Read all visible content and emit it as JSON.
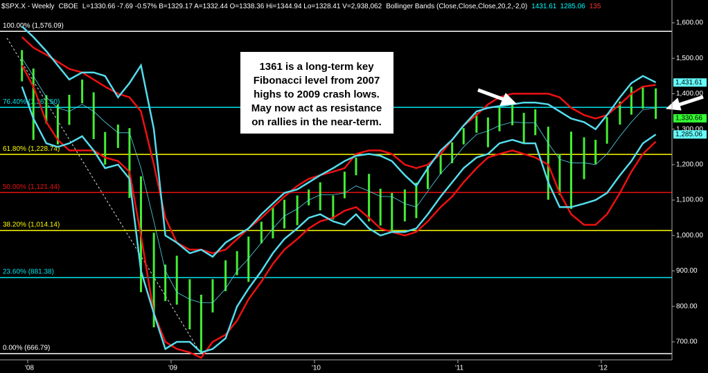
{
  "chart_data": {
    "type": "ohlc",
    "header": [
      {
        "text": "$SPX.X - Weekly",
        "color": "#ffffff"
      },
      {
        "text": "CBOE",
        "color": "#ffffff"
      },
      {
        "text": "L=1330.66 -7.69 -0.57% B=1329.17 A=1332.44 O=1338.36 Hi=1344.94 Lo=1328.41 V=2,938,062",
        "color": "#ffffff"
      },
      {
        "text": "Bollinger Bands (Close,Close,Close,20,2,-2,0)",
        "color": "#ffffff"
      },
      {
        "text": "1431.61",
        "color": "#00ffff"
      },
      {
        "text": "1285.06",
        "color": "#00ffff"
      },
      {
        "text": "135",
        "color": "#ff3333"
      }
    ],
    "annotation": [
      "1361 is a long-term key",
      "Fibonacci level from 2007",
      "highs to 2009 crash lows.",
      "May now act as resistance",
      "on rallies in the near-term."
    ],
    "xlim": [
      2007.807,
      2012.493
    ],
    "xticks": [
      {
        "value": 2008,
        "label": "'08"
      },
      {
        "value": 2009,
        "label": "'09"
      },
      {
        "value": 2010,
        "label": "'10"
      },
      {
        "value": 2011,
        "label": "'11"
      },
      {
        "value": 2012,
        "label": "'12"
      }
    ],
    "ylim": [
      649.2,
      1664.4
    ],
    "yticks": [
      {
        "value": 700,
        "label": "700.00"
      },
      {
        "value": 800,
        "label": "800.00"
      },
      {
        "value": 900,
        "label": "900.00"
      },
      {
        "value": 1000,
        "label": "1,000.00"
      },
      {
        "value": 1100,
        "label": "1,100.00"
      },
      {
        "value": 1200,
        "label": "1,200.00"
      },
      {
        "value": 1300,
        "label": "1,300.00"
      },
      {
        "value": 1400,
        "label": "1,400.00"
      },
      {
        "value": 1500,
        "label": "1,500.00"
      },
      {
        "value": 1600,
        "label": "1,600.00"
      }
    ],
    "fib_levels": [
      {
        "label": "100.00% (1,576.09)",
        "value": 1576.09,
        "color": "#ffffff"
      },
      {
        "label": "76.40% (1,361.50)",
        "value": 1361.5,
        "color": "#00e5ee"
      },
      {
        "label": "61.80% (1,228.74)",
        "value": 1228.74,
        "color": "#ffff00"
      },
      {
        "label": "50.00% (1,121.44)",
        "value": 1121.44,
        "color": "#ee1111"
      },
      {
        "label": "38.20% (1,014.14)",
        "value": 1014.14,
        "color": "#ffff00"
      },
      {
        "label": "23.60% (881.38)",
        "value": 881.38,
        "color": "#00e5ee"
      },
      {
        "label": "0.00% (666.79)",
        "value": 666.79,
        "color": "#ffffff"
      }
    ],
    "price_tags": [
      {
        "value": 1431.61,
        "label": "1,431.61",
        "color": "#66ffff"
      },
      {
        "value": 1330.66,
        "label": "1,330.66",
        "color": "#33ff33"
      },
      {
        "value": 1285.06,
        "label": "1,285.06",
        "color": "#66ffff"
      }
    ],
    "bar_color": "#44ee33",
    "x": [
      2007.96,
      2008.04,
      2008.13,
      2008.21,
      2008.29,
      2008.38,
      2008.46,
      2008.54,
      2008.63,
      2008.71,
      2008.79,
      2008.88,
      2008.96,
      2009.04,
      2009.13,
      2009.21,
      2009.29,
      2009.38,
      2009.46,
      2009.54,
      2009.63,
      2009.71,
      2009.79,
      2009.88,
      2009.96,
      2010.04,
      2010.13,
      2010.21,
      2010.29,
      2010.38,
      2010.46,
      2010.54,
      2010.63,
      2010.71,
      2010.79,
      2010.88,
      2010.96,
      2011.04,
      2011.13,
      2011.21,
      2011.29,
      2011.38,
      2011.46,
      2011.54,
      2011.63,
      2011.71,
      2011.79,
      2011.88,
      2011.96,
      2012.04,
      2012.13,
      2012.21,
      2012.29,
      2012.38
    ],
    "high": [
      1523,
      1471,
      1396,
      1370,
      1397,
      1440,
      1404,
      1292,
      1313,
      1303,
      1167,
      1008,
      918,
      943,
      877,
      833,
      877,
      930,
      956,
      997,
      1039,
      1080,
      1101,
      1113,
      1130,
      1150,
      1113,
      1180,
      1220,
      1174,
      1132,
      1120,
      1130,
      1149,
      1196,
      1227,
      1263,
      1303,
      1344,
      1333,
      1364,
      1371,
      1346,
      1356,
      1307,
      1230,
      1293,
      1277,
      1270,
      1334,
      1378,
      1420,
      1422,
      1415
    ],
    "low": [
      1435,
      1270,
      1316,
      1257,
      1312,
      1373,
      1272,
      1200,
      1247,
      1106,
      840,
      741,
      815,
      805,
      735,
      667,
      783,
      843,
      888,
      869,
      978,
      992,
      1020,
      1029,
      1085,
      1071,
      1045,
      1105,
      1170,
      1040,
      1028,
      1011,
      1040,
      1049,
      1131,
      1173,
      1204,
      1257,
      1290,
      1249,
      1294,
      1311,
      1258,
      1283,
      1101,
      1114,
      1075,
      1159,
      1202,
      1259,
      1313,
      1341,
      1358,
      1329
    ],
    "lines": [
      {
        "color": "#ee1111",
        "width": 2.5,
        "values": [
          1560,
          1530,
          1510,
          1490,
          1470,
          1460,
          1440,
          1420,
          1400,
          1390,
          1350,
          1200,
          1050,
          980,
          960,
          960,
          950,
          960,
          990,
          1020,
          1050,
          1080,
          1110,
          1140,
          1160,
          1170,
          1180,
          1190,
          1230,
          1240,
          1240,
          1230,
          1200,
          1190,
          1200,
          1230,
          1270,
          1310,
          1340,
          1370,
          1390,
          1400,
          1400,
          1400,
          1400,
          1390,
          1360,
          1340,
          1330,
          1340,
          1370,
          1400,
          1420,
          1425
        ]
      },
      {
        "color": "#ee1111",
        "width": 2.5,
        "values": [
          1480,
          1420,
          1320,
          1270,
          1240,
          1240,
          1240,
          1220,
          1210,
          1180,
          1000,
          780,
          700,
          680,
          670,
          655,
          700,
          720,
          760,
          820,
          870,
          920,
          960,
          990,
          1020,
          1040,
          1050,
          1070,
          1080,
          1050,
          1020,
          1010,
          1000,
          1010,
          1040,
          1080,
          1110,
          1150,
          1190,
          1220,
          1230,
          1240,
          1230,
          1220,
          1200,
          1120,
          1060,
          1030,
          1030,
          1060,
          1120,
          1180,
          1230,
          1265
        ]
      },
      {
        "color": "#55ddee",
        "width": 2.5,
        "values": [
          1590,
          1560,
          1520,
          1480,
          1440,
          1460,
          1460,
          1450,
          1390,
          1430,
          1480,
          1300,
          1000,
          980,
          950,
          960,
          940,
          980,
          1000,
          1020,
          1060,
          1090,
          1120,
          1130,
          1150,
          1170,
          1190,
          1210,
          1225,
          1230,
          1225,
          1210,
          1170,
          1140,
          1190,
          1240,
          1270,
          1310,
          1350,
          1360,
          1365,
          1370,
          1375,
          1375,
          1370,
          1350,
          1330,
          1320,
          1300,
          1340,
          1390,
          1430,
          1450,
          1432
        ]
      },
      {
        "color": "#55ddee",
        "width": 2.5,
        "values": [
          1420,
          1330,
          1260,
          1250,
          1260,
          1280,
          1240,
          1190,
          1200,
          1160,
          900,
          780,
          680,
          700,
          700,
          670,
          680,
          710,
          800,
          850,
          900,
          950,
          990,
          1020,
          1050,
          1060,
          1040,
          1030,
          1060,
          1020,
          1000,
          1010,
          1010,
          1020,
          1060,
          1110,
          1150,
          1190,
          1220,
          1230,
          1260,
          1270,
          1260,
          1260,
          1150,
          1080,
          1080,
          1090,
          1100,
          1120,
          1170,
          1210,
          1260,
          1285
        ]
      },
      {
        "color": "#55ddee",
        "width": 0.8,
        "values": [
          1500,
          1450,
          1390,
          1360,
          1350,
          1370,
          1350,
          1320,
          1290,
          1290,
          1190,
          1040,
          900,
          840,
          820,
          810,
          810,
          850,
          900,
          935,
          980,
          1020,
          1055,
          1075,
          1100,
          1115,
          1115,
          1120,
          1140,
          1125,
          1110,
          1110,
          1090,
          1080,
          1125,
          1175,
          1210,
          1250,
          1285,
          1295,
          1310,
          1320,
          1318,
          1318,
          1260,
          1215,
          1205,
          1205,
          1200,
          1230,
          1280,
          1320,
          1355,
          1360
        ]
      }
    ]
  }
}
